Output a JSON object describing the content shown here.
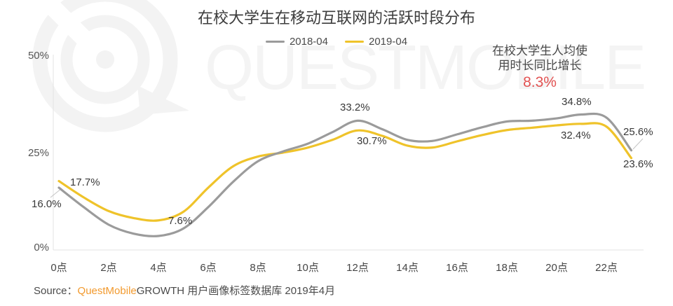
{
  "title": "在校大学生在移动互联网的活跃时段分布",
  "legend": [
    {
      "label": "2018-04",
      "color": "#9b9b9b"
    },
    {
      "label": "2019-04",
      "color": "#efc32a"
    }
  ],
  "annotation": {
    "line1": "在校大学生人均使",
    "line2": "用时长同比增长",
    "value": "8.3%",
    "value_color": "#e25252"
  },
  "point_labels": {
    "start_2018": "16.0%",
    "start_2019": "17.7%",
    "min_2019": "7.6%",
    "noon_2018": "33.2%",
    "noon_2019": "30.7%",
    "evening_2018": "34.8%",
    "evening_2019": "32.4%",
    "end_2018": "25.6%",
    "end_2019": "23.6%"
  },
  "source": {
    "prefix": "Source：",
    "brand": "QuestMobile",
    "brand_color": "#f29a2e",
    "rest": "GROWTH 用户画像标签数据库  2019年4月"
  },
  "watermark": "QUESTMOBILE",
  "chart_data": {
    "type": "line",
    "x_hours": [
      0,
      1,
      2,
      3,
      4,
      5,
      6,
      7,
      8,
      9,
      10,
      11,
      12,
      13,
      14,
      15,
      16,
      17,
      18,
      19,
      20,
      21,
      22,
      23
    ],
    "x_tick_labels": [
      "0点",
      "2点",
      "4点",
      "6点",
      "8点",
      "10点",
      "12点",
      "14点",
      "16点",
      "18点",
      "20点",
      "22点"
    ],
    "yticks": [
      "50%",
      "25%",
      "0%"
    ],
    "ylim": [
      0,
      50
    ],
    "grid": false,
    "legend_position": "top-center",
    "series": [
      {
        "name": "2018-04",
        "color": "#9b9b9b",
        "values": [
          16.0,
          11.0,
          6.5,
          4.2,
          3.6,
          5.5,
          11.0,
          17.5,
          22.8,
          25.3,
          27.3,
          30.3,
          33.2,
          31.0,
          28.3,
          28.0,
          29.7,
          31.5,
          33.0,
          33.2,
          33.8,
          34.8,
          34.0,
          25.6
        ]
      },
      {
        "name": "2019-04",
        "color": "#efc32a",
        "values": [
          17.7,
          13.5,
          10.0,
          8.2,
          7.6,
          9.8,
          16.0,
          21.5,
          24.0,
          25.0,
          26.3,
          28.3,
          30.7,
          29.3,
          26.8,
          26.3,
          27.9,
          29.5,
          30.8,
          31.4,
          32.0,
          32.4,
          31.7,
          23.6
        ]
      }
    ],
    "labeled_points": [
      {
        "series": "2018-04",
        "hour": 0,
        "value": 16.0
      },
      {
        "series": "2019-04",
        "hour": 0,
        "value": 17.7
      },
      {
        "series": "2019-04",
        "hour": 4,
        "value": 7.6
      },
      {
        "series": "2018-04",
        "hour": 12,
        "value": 33.2
      },
      {
        "series": "2019-04",
        "hour": 12,
        "value": 30.7
      },
      {
        "series": "2018-04",
        "hour": 21,
        "value": 34.8
      },
      {
        "series": "2019-04",
        "hour": 21,
        "value": 32.4
      },
      {
        "series": "2018-04",
        "hour": 23,
        "value": 25.6
      },
      {
        "series": "2019-04",
        "hour": 23,
        "value": 23.6
      }
    ]
  }
}
